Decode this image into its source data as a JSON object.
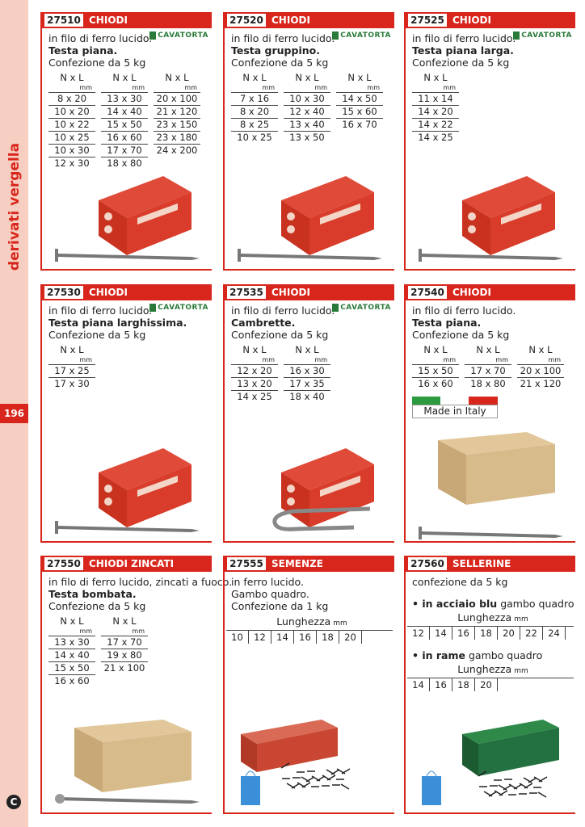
{
  "sidebar": {
    "section": "derivati vergella",
    "page_number": "196",
    "logo": "C"
  },
  "cards": [
    {
      "code": "27510",
      "category": "CHIODI",
      "brand": "CAVATORTA",
      "lines": [
        {
          "text": "in filo di ferro lucido.",
          "bold": false
        },
        {
          "text": "Testa piana.",
          "bold": true
        },
        {
          "text": "Confezione da 5 kg",
          "bold": false
        }
      ],
      "size_table": [
        {
          "heading": "N x L",
          "unit": "mm",
          "rows": [
            "8 x 20",
            "10 x 20",
            "10 x 22",
            "10 x 25",
            "10 x 30",
            "12 x 30"
          ]
        },
        {
          "heading": "N x L",
          "unit": "mm",
          "rows": [
            "13 x 30",
            "14 x 40",
            "15 x 50",
            "16 x 60",
            "17 x 70",
            "18 x 80"
          ]
        },
        {
          "heading": "N x L",
          "unit": "mm",
          "rows": [
            "20 x 100",
            "21 x 120",
            "23 x 150",
            "23 x 180",
            "24 x 200"
          ]
        }
      ]
    },
    {
      "code": "27520",
      "category": "CHIODI",
      "brand": "CAVATORTA",
      "lines": [
        {
          "text": "in filo di ferro lucido.",
          "bold": false
        },
        {
          "text": "Testa gruppino.",
          "bold": true
        },
        {
          "text": "Confezione da 5 kg",
          "bold": false
        }
      ],
      "size_table": [
        {
          "heading": "N x L",
          "unit": "mm",
          "rows": [
            "7 x 16",
            "8 x 20",
            "8 x 25",
            "10 x 25"
          ]
        },
        {
          "heading": "N x L",
          "unit": "mm",
          "rows": [
            "10 x 30",
            "12 x 40",
            "13 x 40",
            "13 x 50"
          ]
        },
        {
          "heading": "N x L",
          "unit": "mm",
          "rows": [
            "14 x 50",
            "15 x 60",
            "16 x 70"
          ]
        }
      ]
    },
    {
      "code": "27525",
      "category": "CHIODI",
      "brand": "CAVATORTA",
      "lines": [
        {
          "text": "in filo di ferro lucido.",
          "bold": false
        },
        {
          "text": "Testa piana larga.",
          "bold": true
        },
        {
          "text": "Confezione da 5 kg",
          "bold": false
        }
      ],
      "size_table": [
        {
          "heading": "N x L",
          "unit": "mm",
          "rows": [
            "11 x 14",
            "14 x 20",
            "14 x 22",
            "14 x 25"
          ]
        }
      ]
    },
    {
      "code": "27530",
      "category": "CHIODI",
      "brand": "CAVATORTA",
      "lines": [
        {
          "text": "in filo di ferro lucido.",
          "bold": false
        },
        {
          "text": "Testa piana larghissima.",
          "bold": true
        },
        {
          "text": "Confezione da 5 kg",
          "bold": false
        }
      ],
      "size_table": [
        {
          "heading": "N x L",
          "unit": "mm",
          "rows": [
            "17 x 25",
            "17 x 30"
          ]
        }
      ]
    },
    {
      "code": "27535",
      "category": "CHIODI",
      "brand": "CAVATORTA",
      "lines": [
        {
          "text": "in filo di ferro lucido.",
          "bold": false
        },
        {
          "text": "Cambrette.",
          "bold": true
        },
        {
          "text": "Confezione da 5 kg",
          "bold": false
        }
      ],
      "size_table": [
        {
          "heading": "N x L",
          "unit": "mm",
          "rows": [
            "12 x 20",
            "13 x 20",
            "14 x 25"
          ]
        },
        {
          "heading": "N x L",
          "unit": "mm",
          "rows": [
            "16 x 30",
            "17 x 35",
            "18 x 40"
          ]
        }
      ]
    },
    {
      "code": "27540",
      "category": "CHIODI",
      "badge": "Made in Italy",
      "lines": [
        {
          "text": "in filo di ferro lucido.",
          "bold": false
        },
        {
          "text": "Testa piana.",
          "bold": true
        },
        {
          "text": "Confezione da 5 kg",
          "bold": false
        }
      ],
      "size_table": [
        {
          "heading": "N x L",
          "unit": "mm",
          "rows": [
            "15 x 50",
            "16 x 60"
          ]
        },
        {
          "heading": "N x L",
          "unit": "mm",
          "rows": [
            "17 x 70",
            "18 x 80"
          ]
        },
        {
          "heading": "N x L",
          "unit": "mm",
          "rows": [
            "20 x 100",
            "21 x 120"
          ]
        }
      ]
    },
    {
      "code": "27550",
      "category": "CHIODI ZINCATI",
      "lines": [
        {
          "text": "in filo di ferro lucido, zincati a fuoco.",
          "bold": false
        },
        {
          "text": "Testa bombata.",
          "bold": true
        },
        {
          "text": "Confezione da 5 kg",
          "bold": false
        }
      ],
      "size_table": [
        {
          "heading": "N x L",
          "unit": "mm",
          "rows": [
            "13 x 30",
            "14 x 40",
            "15 x 50",
            "16 x 60"
          ]
        },
        {
          "heading": "N x L",
          "unit": "mm",
          "rows": [
            "17 x 70",
            "19 x 80",
            "21 x 100"
          ]
        }
      ]
    },
    {
      "code": "27555",
      "category": "SEMENZE",
      "lines": [
        {
          "text": "in ferro lucido.",
          "bold": false
        },
        {
          "text": "Gambo quadro.",
          "bold": false
        },
        {
          "text": "Confezione da 1 kg",
          "bold": false
        }
      ],
      "length_tables": [
        {
          "heading": "Lunghezza",
          "unit": "mm",
          "values": [
            "10",
            "12",
            "14",
            "16",
            "18",
            "20"
          ]
        }
      ]
    },
    {
      "code": "27560",
      "category": "SELLERINE",
      "lines": [
        {
          "text": "confezione da 5 kg",
          "bold": false
        }
      ],
      "length_tables": [
        {
          "bullet": "in acciaio blu",
          "rest": "gambo quadro",
          "heading": "Lunghezza",
          "unit": "mm",
          "values": [
            "12",
            "14",
            "16",
            "18",
            "20",
            "22",
            "24"
          ]
        },
        {
          "bullet": "in rame",
          "rest": "gambo quadro",
          "heading": "Lunghezza",
          "unit": "mm",
          "values": [
            "14",
            "16",
            "18",
            "20"
          ]
        }
      ]
    }
  ]
}
